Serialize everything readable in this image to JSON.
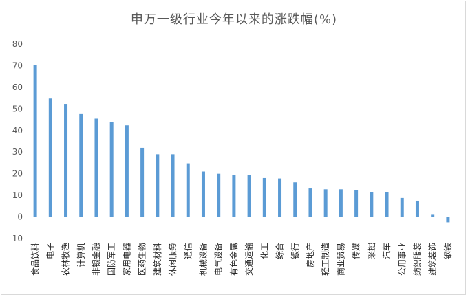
{
  "chart_data": {
    "type": "bar",
    "title": "申万一级行业今年以来的涨跌幅(%)",
    "xlabel": "",
    "ylabel": "",
    "ylim": [
      -10,
      80
    ],
    "yticks": [
      -10,
      0,
      10,
      20,
      30,
      40,
      50,
      60,
      70,
      80
    ],
    "grid": false,
    "legend": "none",
    "bar_color": "#5b9bd5",
    "categories": [
      "食品饮料",
      "电子",
      "农林牧渔",
      "计算机",
      "非银金融",
      "国防军工",
      "家用电器",
      "医药生物",
      "建筑材料",
      "休闲服务",
      "通信",
      "机械设备",
      "电气设备",
      "有色金属",
      "交通运输",
      "化工",
      "综合",
      "银行",
      "房地产",
      "轻工制造",
      "商业贸易",
      "传媒",
      "采掘",
      "汽车",
      "公用事业",
      "纺织服装",
      "建筑装饰",
      "钢铁"
    ],
    "values": [
      70.2,
      54.8,
      52.0,
      47.6,
      45.5,
      44.0,
      42.4,
      32.0,
      29.0,
      29.0,
      24.8,
      21.0,
      20.0,
      19.5,
      19.5,
      18.0,
      17.8,
      16.0,
      13.2,
      12.8,
      12.8,
      12.4,
      11.5,
      11.5,
      8.8,
      7.5,
      1.0,
      -2.5
    ]
  }
}
